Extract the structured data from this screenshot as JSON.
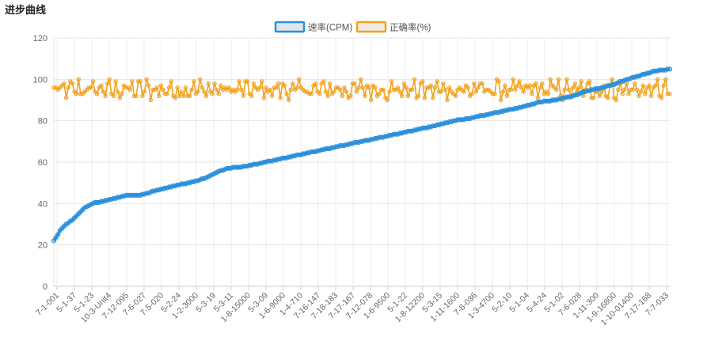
{
  "page": {
    "title": "进步曲线"
  },
  "legend": {
    "items": [
      {
        "label": "速率(CPM)",
        "color": "#2b8fdc",
        "fill": "#dde6ef"
      },
      {
        "label": "正确率(%)",
        "color": "#f2a11e",
        "fill": "#eee9e1"
      }
    ]
  },
  "chart_data": {
    "type": "line",
    "title": "进步曲线",
    "xlabel": "",
    "ylabel": "",
    "ylim": [
      0,
      120
    ],
    "yticks": [
      0,
      20,
      40,
      60,
      80,
      100,
      120
    ],
    "grid": true,
    "legend_position": "top-center",
    "point_count": 300,
    "x_tick_labels": [
      "7-1-001",
      "5-1-37",
      "5-1-23",
      "10-3-Unit4",
      "7-12-095",
      "7-6-027",
      "7-5-020",
      "5-2-24",
      "1-2-3000",
      "5-3-19",
      "5-3-11",
      "1-8-15000",
      "5-3-09",
      "1-6-9000",
      "1-4-710",
      "7-16-147",
      "7-18-183",
      "7-17-167",
      "7-12-078",
      "1-6-9500",
      "5-1-22",
      "1-8-12200",
      "5-3-15",
      "1-11-1600",
      "7-8-036",
      "1-3-4700",
      "5-2-10",
      "5-1-04",
      "5-4-24",
      "5-1-02",
      "7-6-028",
      "1-11-300",
      "1-9-16800",
      "1-10-01400",
      "7-17-168",
      "7-7-033"
    ],
    "series": [
      {
        "name": "速率(CPM)",
        "color": "#2b8fdc",
        "anchors": [
          [
            0,
            22
          ],
          [
            2,
            25
          ],
          [
            4,
            28
          ],
          [
            8,
            31
          ],
          [
            12,
            34
          ],
          [
            16,
            38
          ],
          [
            20,
            40
          ],
          [
            30,
            42
          ],
          [
            38,
            44
          ],
          [
            45,
            44
          ],
          [
            52,
            46
          ],
          [
            60,
            48
          ],
          [
            70,
            50
          ],
          [
            78,
            52
          ],
          [
            82,
            54
          ],
          [
            90,
            57
          ],
          [
            100,
            58
          ],
          [
            110,
            60
          ],
          [
            120,
            62
          ],
          [
            130,
            64
          ],
          [
            140,
            66
          ],
          [
            150,
            68
          ],
          [
            160,
            70
          ],
          [
            170,
            72
          ],
          [
            180,
            74
          ],
          [
            190,
            76
          ],
          [
            200,
            78
          ],
          [
            208,
            80
          ],
          [
            215,
            81
          ],
          [
            225,
            83
          ],
          [
            235,
            85
          ],
          [
            245,
            87
          ],
          [
            252,
            89
          ],
          [
            260,
            90
          ],
          [
            270,
            92
          ],
          [
            275,
            94
          ],
          [
            285,
            96
          ],
          [
            292,
            98
          ],
          [
            298,
            100
          ],
          [
            305,
            102
          ],
          [
            312,
            104
          ],
          [
            320,
            105
          ]
        ]
      },
      {
        "name": "正确率(%)",
        "color": "#f2a11e",
        "range": [
          90,
          100
        ],
        "mean": 95
      }
    ]
  }
}
